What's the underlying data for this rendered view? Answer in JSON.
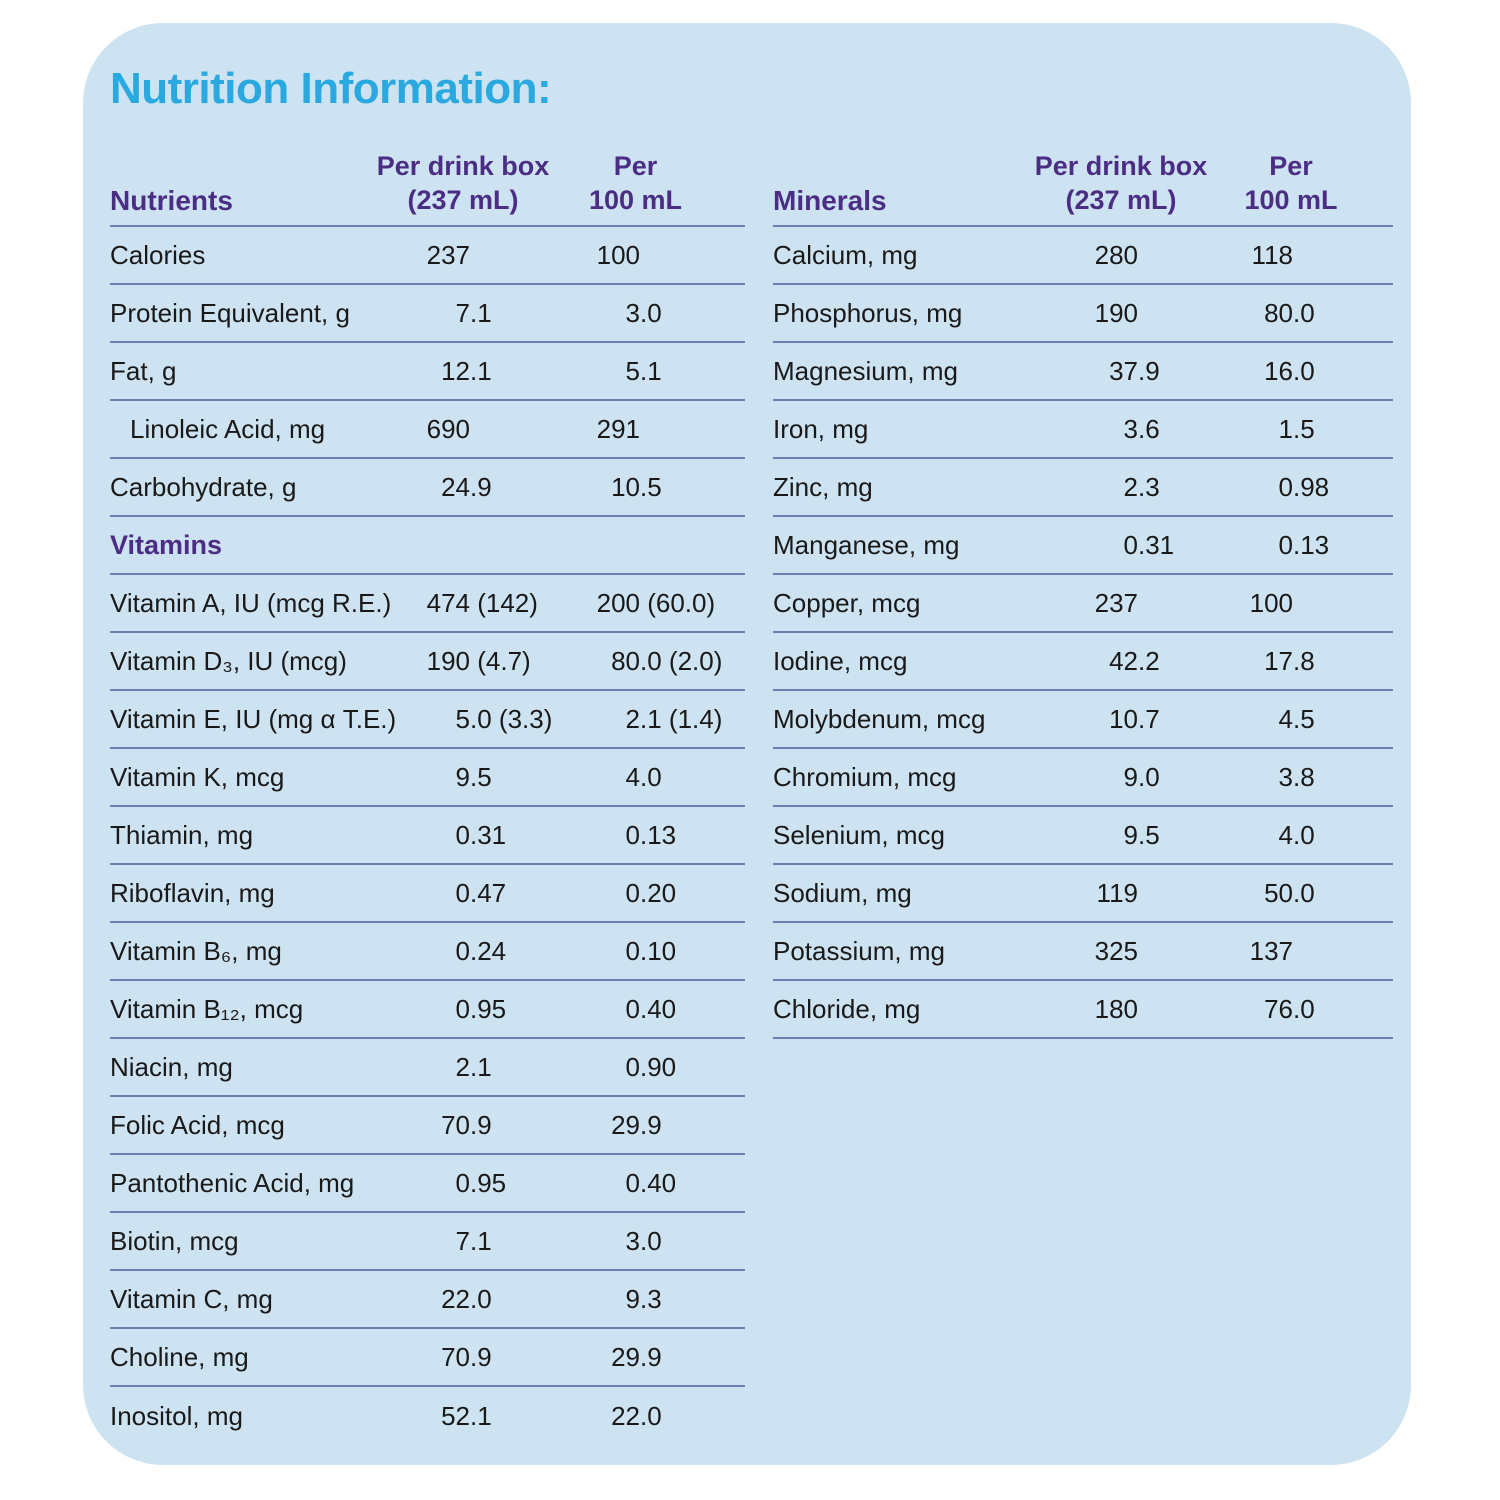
{
  "title": "Nutrition Information:",
  "colors": {
    "page_bg": "#ffffff",
    "card_bg": "#cee3f1",
    "title": "#29a9df",
    "header_purple": "#4b2e84",
    "divider": "#727bb0",
    "text": "#191919"
  },
  "columns": {
    "col1": "Per drink box",
    "col1_sub": "(237 mL)",
    "col2": "Per",
    "col2_sub": "100 mL"
  },
  "left_table": {
    "header": "Nutrients",
    "last_row_border": false,
    "rows": [
      {
        "label": "Calories",
        "v1": "237",
        "v2": "100"
      },
      {
        "label": "Protein Equivalent, g",
        "v1": "7.1",
        "v2": "3.0"
      },
      {
        "label": "Fat, g",
        "v1": "12.1",
        "v2": "5.1"
      },
      {
        "label": "Linoleic Acid, mg",
        "v1": "690",
        "v2": "291",
        "indent": true
      },
      {
        "label": "Carbohydrate, g",
        "v1": "24.9",
        "v2": "10.5"
      },
      {
        "section": "Vitamins"
      },
      {
        "label": "Vitamin A, IU (mcg R.E.)",
        "v1": "474 (142)",
        "v2": "200 (60.0)"
      },
      {
        "label": "Vitamin D₃, IU (mcg)",
        "v1": "190 (4.7)",
        "v2": "80.0 (2.0)"
      },
      {
        "label": "Vitamin E, IU (mg α T.E.)",
        "v1": "5.0 (3.3)",
        "v2": "2.1 (1.4)"
      },
      {
        "label": "Vitamin K, mcg",
        "v1": "9.5",
        "v2": "4.0"
      },
      {
        "label": "Thiamin, mg",
        "v1": "0.31",
        "v2": "0.13"
      },
      {
        "label": "Riboflavin, mg",
        "v1": "0.47",
        "v2": "0.20"
      },
      {
        "label": "Vitamin B₆, mg",
        "v1": "0.24",
        "v2": "0.10"
      },
      {
        "label": "Vitamin B₁₂, mcg",
        "v1": "0.95",
        "v2": "0.40"
      },
      {
        "label": "Niacin, mg",
        "v1": "2.1",
        "v2": "0.90"
      },
      {
        "label": "Folic Acid, mcg",
        "v1": "70.9",
        "v2": "29.9"
      },
      {
        "label": "Pantothenic Acid, mg",
        "v1": "0.95",
        "v2": "0.40"
      },
      {
        "label": "Biotin, mcg",
        "v1": "7.1",
        "v2": "3.0"
      },
      {
        "label": "Vitamin C, mg",
        "v1": "22.0",
        "v2": "9.3"
      },
      {
        "label": "Choline, mg",
        "v1": "70.9",
        "v2": "29.9"
      },
      {
        "label": "Inositol, mg",
        "v1": "52.1",
        "v2": "22.0"
      }
    ]
  },
  "right_table": {
    "header": "Minerals",
    "last_row_border": true,
    "rows": [
      {
        "label": "Calcium, mg",
        "v1": "280",
        "v2": "118"
      },
      {
        "label": "Phosphorus, mg",
        "v1": "190",
        "v2": "80.0"
      },
      {
        "label": "Magnesium, mg",
        "v1": "37.9",
        "v2": "16.0"
      },
      {
        "label": "Iron, mg",
        "v1": "3.6",
        "v2": "1.5"
      },
      {
        "label": "Zinc, mg",
        "v1": "2.3",
        "v2": "0.98"
      },
      {
        "label": "Manganese, mg",
        "v1": "0.31",
        "v2": "0.13"
      },
      {
        "label": "Copper, mcg",
        "v1": "237",
        "v2": "100"
      },
      {
        "label": "Iodine, mcg",
        "v1": "42.2",
        "v2": "17.8"
      },
      {
        "label": "Molybdenum, mcg",
        "v1": "10.7",
        "v2": "4.5"
      },
      {
        "label": "Chromium, mcg",
        "v1": "9.0",
        "v2": "3.8"
      },
      {
        "label": "Selenium, mcg",
        "v1": "9.5",
        "v2": "4.0"
      },
      {
        "label": "Sodium, mg",
        "v1": "119",
        "v2": "50.0"
      },
      {
        "label": "Potassium, mg",
        "v1": "325",
        "v2": "137"
      },
      {
        "label": "Chloride, mg",
        "v1": "180",
        "v2": "76.0"
      }
    ]
  }
}
